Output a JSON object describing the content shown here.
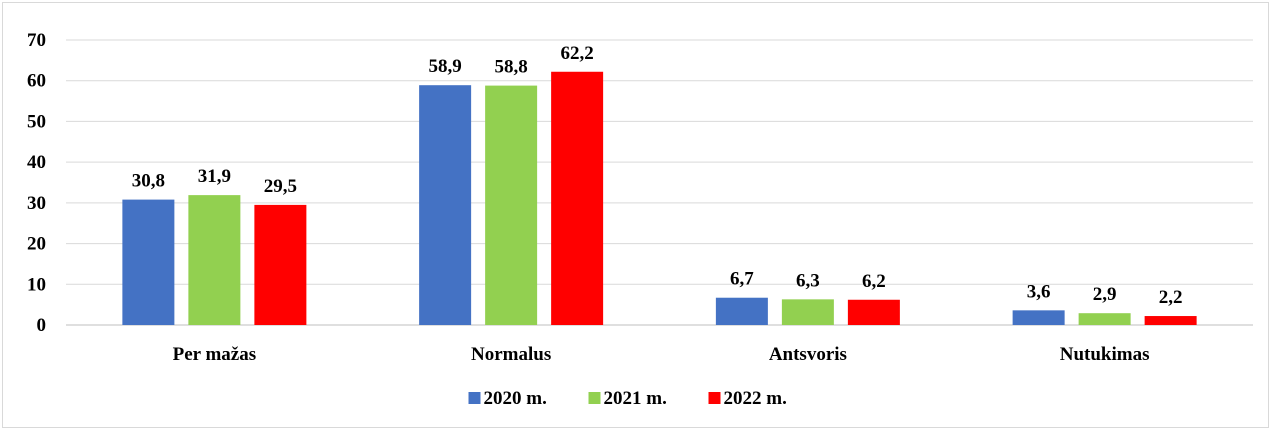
{
  "chart_data": {
    "type": "bar",
    "categories": [
      "Per mažas",
      "Normalus",
      "Antsvoris",
      "Nutukimas"
    ],
    "series": [
      {
        "name": "2020 m.",
        "color": "#4472C4",
        "values": [
          30.8,
          58.9,
          6.7,
          3.6
        ],
        "labels": [
          "30,8",
          "58,9",
          "6,7",
          "3,6"
        ]
      },
      {
        "name": "2021 m.",
        "color": "#92D050",
        "values": [
          31.9,
          58.8,
          6.3,
          2.9
        ],
        "labels": [
          "31,9",
          "58,8",
          "6,3",
          "2,9"
        ]
      },
      {
        "name": "2022 m.",
        "color": "#FF0000",
        "values": [
          29.5,
          62.2,
          6.2,
          2.2
        ],
        "labels": [
          "29,5",
          "62,2",
          "6,2",
          "2,2"
        ]
      }
    ],
    "ylim": [
      0,
      70
    ],
    "yticks": [
      "0",
      "10",
      "20",
      "30",
      "40",
      "50",
      "60",
      "70"
    ],
    "grid": true,
    "legend_position": "bottom"
  }
}
